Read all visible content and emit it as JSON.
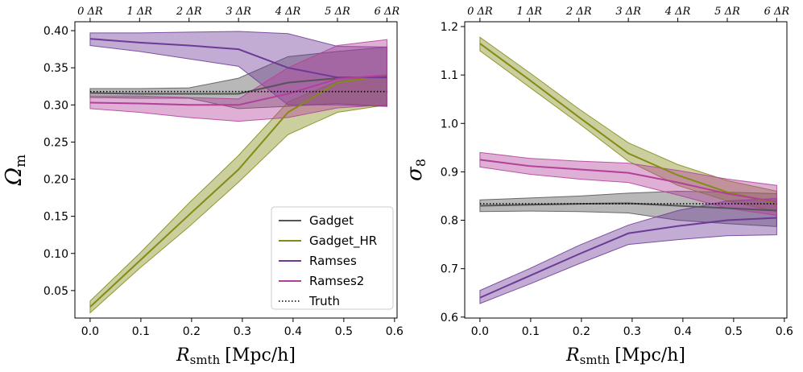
{
  "chart_data": [
    {
      "type": "line",
      "panel": "left",
      "xlabel": "R_smth [Mpc/h]",
      "xlabel_main": "R",
      "xlabel_sub": "smth",
      "xlabel_unit": "[Mpc/h]",
      "ylabel": "Ω_m",
      "ylabel_main": "Ω",
      "ylabel_sub": "m",
      "xlim": [
        -0.03,
        0.605
      ],
      "ylim": [
        0.013,
        0.412
      ],
      "xticks": [
        0.0,
        0.1,
        0.2,
        0.3,
        0.4,
        0.5,
        0.6
      ],
      "xtick_labels": [
        "0.0",
        "0.1",
        "0.2",
        "0.3",
        "0.4",
        "0.5",
        "0.6"
      ],
      "yticks": [
        0.05,
        0.1,
        0.15,
        0.2,
        0.25,
        0.3,
        0.35,
        0.4
      ],
      "ytick_labels": [
        "0.05",
        "0.10",
        "0.15",
        "0.20",
        "0.25",
        "0.30",
        "0.35",
        "0.40"
      ],
      "top_xticks": [
        0.0,
        0.0975,
        0.195,
        0.2925,
        0.39,
        0.4875,
        0.585
      ],
      "top_xtick_labels": [
        "0 ΔR",
        "1 ΔR",
        "2 ΔR",
        "3 ΔR",
        "4 ΔR",
        "5 ΔR",
        "6 ΔR"
      ],
      "x": [
        0.0,
        0.0975,
        0.195,
        0.2925,
        0.39,
        0.4875,
        0.585
      ],
      "series": [
        {
          "name": "Gadget",
          "color": "#555555",
          "fill": "#555555",
          "values": [
            0.316,
            0.315,
            0.315,
            0.315,
            0.33,
            0.336,
            0.338
          ],
          "lower": [
            0.31,
            0.309,
            0.309,
            0.295,
            0.298,
            0.302,
            0.298
          ],
          "upper": [
            0.322,
            0.322,
            0.323,
            0.336,
            0.365,
            0.372,
            0.378
          ]
        },
        {
          "name": "Gadget_HR",
          "color": "#838b15",
          "fill": "#838b15",
          "values": [
            0.028,
            0.09,
            0.152,
            0.213,
            0.29,
            0.33,
            0.34
          ],
          "lower": [
            0.02,
            0.08,
            0.136,
            0.196,
            0.26,
            0.29,
            0.3
          ],
          "upper": [
            0.036,
            0.1,
            0.168,
            0.232,
            0.304,
            0.332,
            0.34
          ]
        },
        {
          "name": "Ramses",
          "color": "#6d3a97",
          "fill": "#6d3a97",
          "values": [
            0.389,
            0.384,
            0.38,
            0.375,
            0.35,
            0.337,
            0.337
          ],
          "lower": [
            0.38,
            0.372,
            0.362,
            0.352,
            0.3,
            0.3,
            0.298
          ],
          "upper": [
            0.397,
            0.397,
            0.398,
            0.399,
            0.396,
            0.379,
            0.378
          ]
        },
        {
          "name": "Ramses2",
          "color": "#b2409a",
          "fill": "#b2409a",
          "values": [
            0.303,
            0.302,
            0.3,
            0.3,
            0.315,
            0.335,
            0.34
          ],
          "lower": [
            0.295,
            0.29,
            0.283,
            0.278,
            0.283,
            0.296,
            0.3
          ],
          "upper": [
            0.312,
            0.312,
            0.31,
            0.308,
            0.35,
            0.38,
            0.388
          ]
        },
        {
          "name": "Truth",
          "color": "#000000",
          "style": "dotted",
          "values": [
            0.318,
            0.318,
            0.318,
            0.318,
            0.318,
            0.318,
            0.318
          ]
        }
      ],
      "legend": {
        "placement": "bottom-right",
        "entries": [
          "Gadget",
          "Gadget_HR",
          "Ramses",
          "Ramses2",
          "Truth"
        ]
      }
    },
    {
      "type": "line",
      "panel": "right",
      "xlabel": "R_smth [Mpc/h]",
      "xlabel_main": "R",
      "xlabel_sub": "smth",
      "xlabel_unit": "[Mpc/h]",
      "ylabel": "σ_8",
      "ylabel_main": "σ",
      "ylabel_sub": "8",
      "xlim": [
        -0.03,
        0.605
      ],
      "ylim": [
        0.598,
        1.21
      ],
      "xticks": [
        0.0,
        0.1,
        0.2,
        0.3,
        0.4,
        0.5,
        0.6
      ],
      "xtick_labels": [
        "0.0",
        "0.1",
        "0.2",
        "0.3",
        "0.4",
        "0.5",
        "0.6"
      ],
      "yticks": [
        0.6,
        0.7,
        0.8,
        0.9,
        1.0,
        1.1,
        1.2
      ],
      "ytick_labels": [
        "0.6",
        "0.7",
        "0.8",
        "0.9",
        "1.0",
        "1.1",
        "1.2"
      ],
      "top_xticks": [
        0.0,
        0.0975,
        0.195,
        0.2925,
        0.39,
        0.4875,
        0.585
      ],
      "top_xtick_labels": [
        "0 ΔR",
        "1 ΔR",
        "2 ΔR",
        "3 ΔR",
        "4 ΔR",
        "5 ΔR",
        "6 ΔR"
      ],
      "x": [
        0.0,
        0.0975,
        0.195,
        0.2925,
        0.39,
        0.4875,
        0.585
      ],
      "series": [
        {
          "name": "Gadget",
          "color": "#555555",
          "fill": "#555555",
          "values": [
            0.83,
            0.832,
            0.834,
            0.835,
            0.83,
            0.825,
            0.82
          ],
          "lower": [
            0.818,
            0.819,
            0.818,
            0.815,
            0.8,
            0.793,
            0.787
          ],
          "upper": [
            0.842,
            0.846,
            0.85,
            0.856,
            0.86,
            0.858,
            0.855
          ]
        },
        {
          "name": "Gadget_HR",
          "color": "#838b15",
          "fill": "#838b15",
          "values": [
            1.165,
            1.09,
            1.013,
            0.938,
            0.893,
            0.858,
            0.835
          ],
          "lower": [
            1.15,
            1.075,
            1.0,
            0.922,
            0.872,
            0.84,
            0.818
          ],
          "upper": [
            1.178,
            1.105,
            1.03,
            0.96,
            0.915,
            0.882,
            0.86
          ]
        },
        {
          "name": "Ramses",
          "color": "#6d3a97",
          "fill": "#6d3a97",
          "values": [
            0.64,
            0.685,
            0.73,
            0.773,
            0.788,
            0.8,
            0.805
          ],
          "lower": [
            0.628,
            0.668,
            0.71,
            0.75,
            0.76,
            0.768,
            0.77
          ],
          "upper": [
            0.655,
            0.7,
            0.748,
            0.79,
            0.82,
            0.84,
            0.845
          ]
        },
        {
          "name": "Ramses2",
          "color": "#b2409a",
          "fill": "#b2409a",
          "values": [
            0.925,
            0.912,
            0.905,
            0.898,
            0.878,
            0.855,
            0.838
          ],
          "lower": [
            0.91,
            0.895,
            0.885,
            0.878,
            0.852,
            0.825,
            0.81
          ],
          "upper": [
            0.94,
            0.928,
            0.922,
            0.918,
            0.903,
            0.885,
            0.872
          ]
        },
        {
          "name": "Truth",
          "color": "#000000",
          "style": "dotted",
          "values": [
            0.834,
            0.834,
            0.834,
            0.834,
            0.834,
            0.834,
            0.834
          ]
        }
      ]
    }
  ]
}
